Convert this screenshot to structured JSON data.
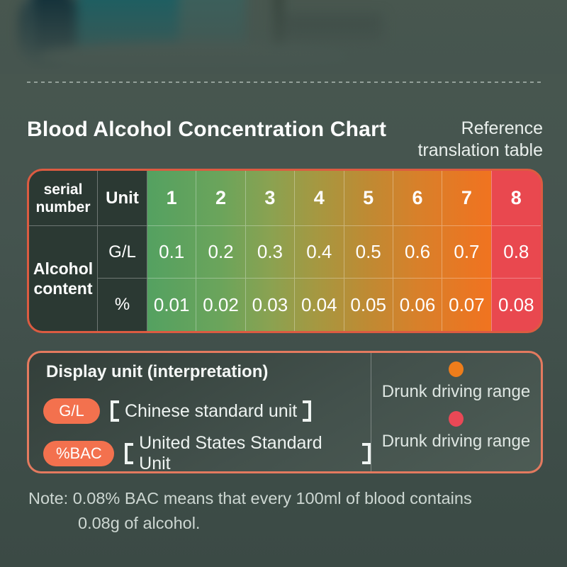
{
  "style": {
    "page_background": "#45544f",
    "table_border_color": "#dc5b41",
    "display_box_border_color": "#e47a5f",
    "pill_color": "#f3714e",
    "dark_cell_color": "#2b3933"
  },
  "header": {
    "title": "Blood Alcohol Concentration Chart",
    "subtitle_line1": "Reference",
    "subtitle_line2": "translation table"
  },
  "table": {
    "header": {
      "serial": "serial number",
      "unit_col": "Unit",
      "numbers": [
        "1",
        "2",
        "3",
        "4",
        "5",
        "6",
        "7",
        "8"
      ]
    },
    "row_label": "Alcohol content",
    "rows": [
      {
        "unit": "G/L",
        "values": [
          "0.1",
          "0.2",
          "0.3",
          "0.4",
          "0.5",
          "0.6",
          "0.7",
          "0.8"
        ]
      },
      {
        "unit": "%",
        "values": [
          "0.01",
          "0.02",
          "0.03",
          "0.04",
          "0.05",
          "0.06",
          "0.07",
          "0.08"
        ]
      }
    ]
  },
  "display_box": {
    "title": "Display unit (interpretation)",
    "units": [
      {
        "pill": "G/L",
        "label": "Chinese standard unit"
      },
      {
        "pill": "%BAC",
        "label": "United States Standard Unit"
      }
    ],
    "legend": [
      {
        "color": "#ee7d1b",
        "label": "Drunk driving range"
      },
      {
        "color": "#ea4856",
        "label": "Drunk driving range"
      }
    ]
  },
  "note": "Note: 0.08% BAC means that every 100ml of blood contains 0.08g of alcohol.",
  "chart_data": {
    "type": "table",
    "title": "Blood Alcohol Concentration Chart",
    "subtitle": "Reference translation table",
    "columns": [
      "serial number",
      "Unit",
      "1",
      "2",
      "3",
      "4",
      "5",
      "6",
      "7",
      "8"
    ],
    "rows": [
      [
        "Alcohol content",
        "G/L",
        0.1,
        0.2,
        0.3,
        0.4,
        0.5,
        0.6,
        0.7,
        0.8
      ],
      [
        "Alcohol content",
        "%",
        0.01,
        0.02,
        0.03,
        0.04,
        0.05,
        0.06,
        0.07,
        0.08
      ]
    ],
    "column_color_gradient": [
      "#54a161",
      "#6ba45b",
      "#8aa251",
      "#a79740",
      "#bf8a33",
      "#d8802a",
      "#f07420",
      "#e9484f"
    ],
    "legend": [
      {
        "color": "#ee7d1b",
        "meaning": "Drunk driving range"
      },
      {
        "color": "#ea4856",
        "meaning": "Drunk driving range"
      }
    ],
    "units_explained": [
      {
        "unit": "G/L",
        "standard": "Chinese standard unit"
      },
      {
        "unit": "%BAC",
        "standard": "United States Standard Unit"
      }
    ],
    "note": "0.08% BAC means that every 100ml of blood contains 0.08g of alcohol."
  }
}
